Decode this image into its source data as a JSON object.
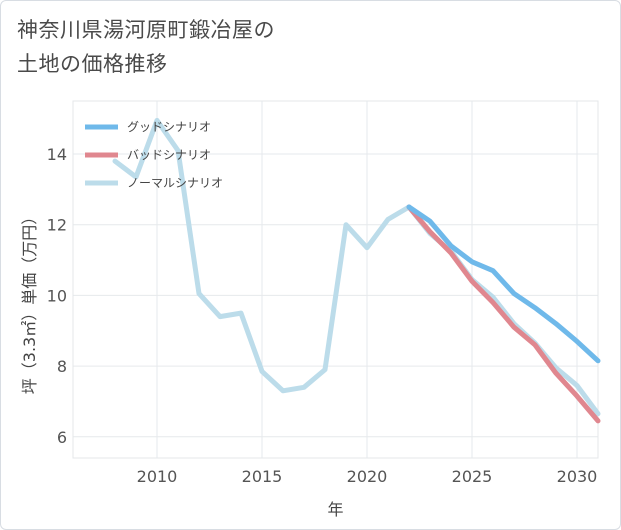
{
  "title_line1": "神奈川県湯河原町鍛冶屋の",
  "title_line2": "土地の価格推移",
  "chart_data": {
    "type": "line",
    "xlabel": "年",
    "ylabel": "坪（3.3㎡）単価（万円）",
    "xlim": [
      2006,
      2031
    ],
    "ylim": [
      5.4,
      15.5
    ],
    "xticks": [
      2010,
      2015,
      2020,
      2025,
      2030
    ],
    "yticks": [
      6,
      8,
      10,
      12,
      14
    ],
    "grid": true,
    "legend_position": "top-left",
    "series": [
      {
        "name": "グッドシナリオ",
        "color": "#6fb9ea",
        "x": [
          2022,
          2023,
          2024,
          2025,
          2026,
          2027,
          2028,
          2029,
          2030,
          2031
        ],
        "values": [
          12.5,
          12.1,
          11.4,
          10.95,
          10.7,
          10.05,
          9.65,
          9.2,
          8.7,
          8.15
        ]
      },
      {
        "name": "バッドシナリオ",
        "color": "#e0878f",
        "x": [
          2022,
          2023,
          2024,
          2025,
          2026,
          2027,
          2028,
          2029,
          2030,
          2031
        ],
        "values": [
          12.5,
          11.8,
          11.2,
          10.4,
          9.8,
          9.1,
          8.6,
          7.8,
          7.15,
          6.45
        ]
      },
      {
        "name": "ノーマルシナリオ",
        "color": "#bcdcea",
        "x": [
          2008,
          2009,
          2010,
          2011,
          2012,
          2013,
          2014,
          2015,
          2016,
          2017,
          2018,
          2019,
          2020,
          2021,
          2022,
          2023,
          2024,
          2025,
          2026,
          2027,
          2028,
          2029,
          2030,
          2031
        ],
        "values": [
          13.8,
          13.35,
          14.95,
          14.1,
          10.05,
          9.4,
          9.5,
          7.85,
          7.3,
          7.4,
          7.9,
          12.0,
          11.35,
          12.15,
          12.5,
          11.75,
          11.25,
          10.45,
          9.95,
          9.2,
          8.65,
          7.95,
          7.45,
          6.65
        ]
      }
    ]
  }
}
